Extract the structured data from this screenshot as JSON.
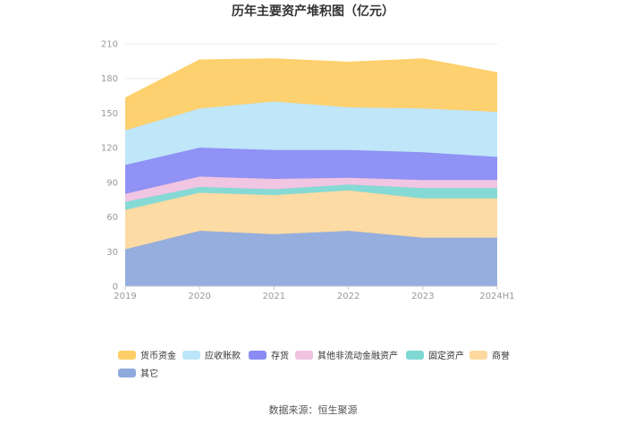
{
  "chart_data": {
    "type": "area",
    "title": "历年主要资产堆积图（亿元）",
    "categories": [
      "2019",
      "2020",
      "2021",
      "2022",
      "2023",
      "2024H1"
    ],
    "y_ticks": [
      "0",
      "30",
      "60",
      "90",
      "120",
      "150",
      "180",
      "210"
    ],
    "ylim": [
      0,
      210
    ],
    "stacked": true,
    "grid": true,
    "legend_position": "bottom",
    "series": [
      {
        "name": "其它",
        "color": "#8faadc",
        "values": [
          32,
          48,
          45,
          48,
          42,
          42
        ]
      },
      {
        "name": "商誉",
        "color": "#fdd9a0",
        "values": [
          34,
          33,
          34,
          35,
          34,
          34
        ]
      },
      {
        "name": "固定资产",
        "color": "#7fd8d4",
        "values": [
          7,
          5,
          5,
          5,
          9,
          9
        ]
      },
      {
        "name": "其他非流动金融资产",
        "color": "#f0c3e0",
        "values": [
          7,
          9,
          9,
          6,
          7,
          7
        ]
      },
      {
        "name": "存货",
        "color": "#8a8cf4",
        "values": [
          25,
          25,
          25,
          24,
          24,
          20
        ]
      },
      {
        "name": "应收账款",
        "color": "#bde5f9",
        "values": [
          30,
          34,
          42,
          37,
          38,
          39
        ]
      },
      {
        "name": "货币资金",
        "color": "#fecf68",
        "values": [
          28,
          42,
          37,
          39,
          43,
          34
        ]
      }
    ],
    "legend_order": [
      "货币资金",
      "应收账款",
      "存货",
      "其他非流动金融资产",
      "固定资产",
      "商誉",
      "其它"
    ]
  },
  "source_text": "数据来源：恒生聚源"
}
